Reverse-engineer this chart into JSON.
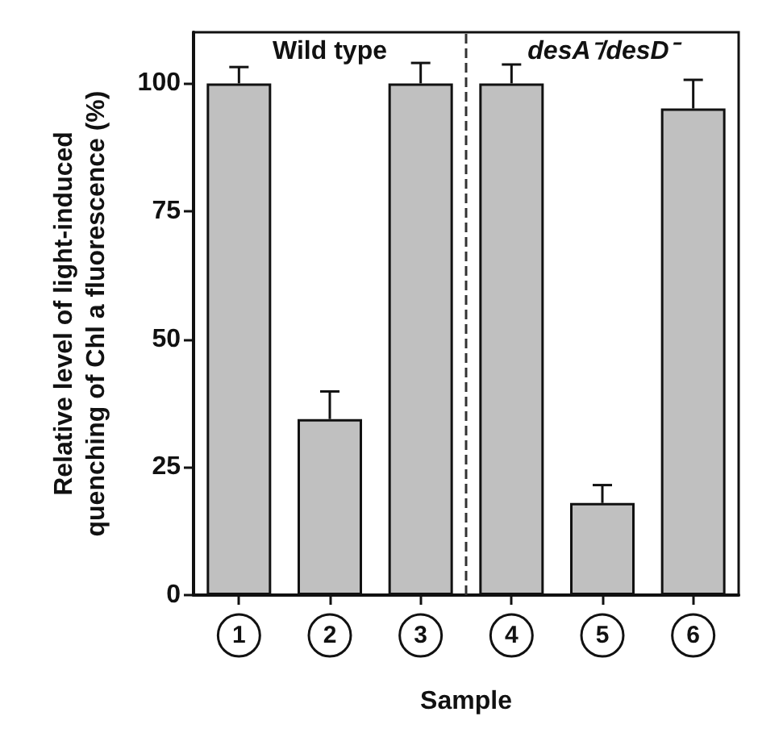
{
  "chart_data": {
    "type": "bar",
    "xlabel": "Sample",
    "ylabel": "Relative level of light-induced\nquenching of Chl a fluorescence (%)",
    "categories": [
      "1",
      "2",
      "3",
      "4",
      "5",
      "6"
    ],
    "values": [
      100,
      34.4,
      100,
      100,
      18,
      95.1
    ],
    "errors": [
      [
        100,
        103.2
      ],
      [
        34.4,
        39.8
      ],
      [
        100,
        104
      ],
      [
        100,
        103.7
      ],
      [
        18,
        21.5
      ],
      [
        95.1,
        100.7
      ]
    ],
    "color": "#c0c0c0",
    "ylim": [
      0,
      110
    ],
    "yticks": [
      0,
      25,
      50,
      75,
      100
    ],
    "grid": false,
    "annotations": [
      "Wild type",
      "desA⁻/desD⁻"
    ]
  }
}
